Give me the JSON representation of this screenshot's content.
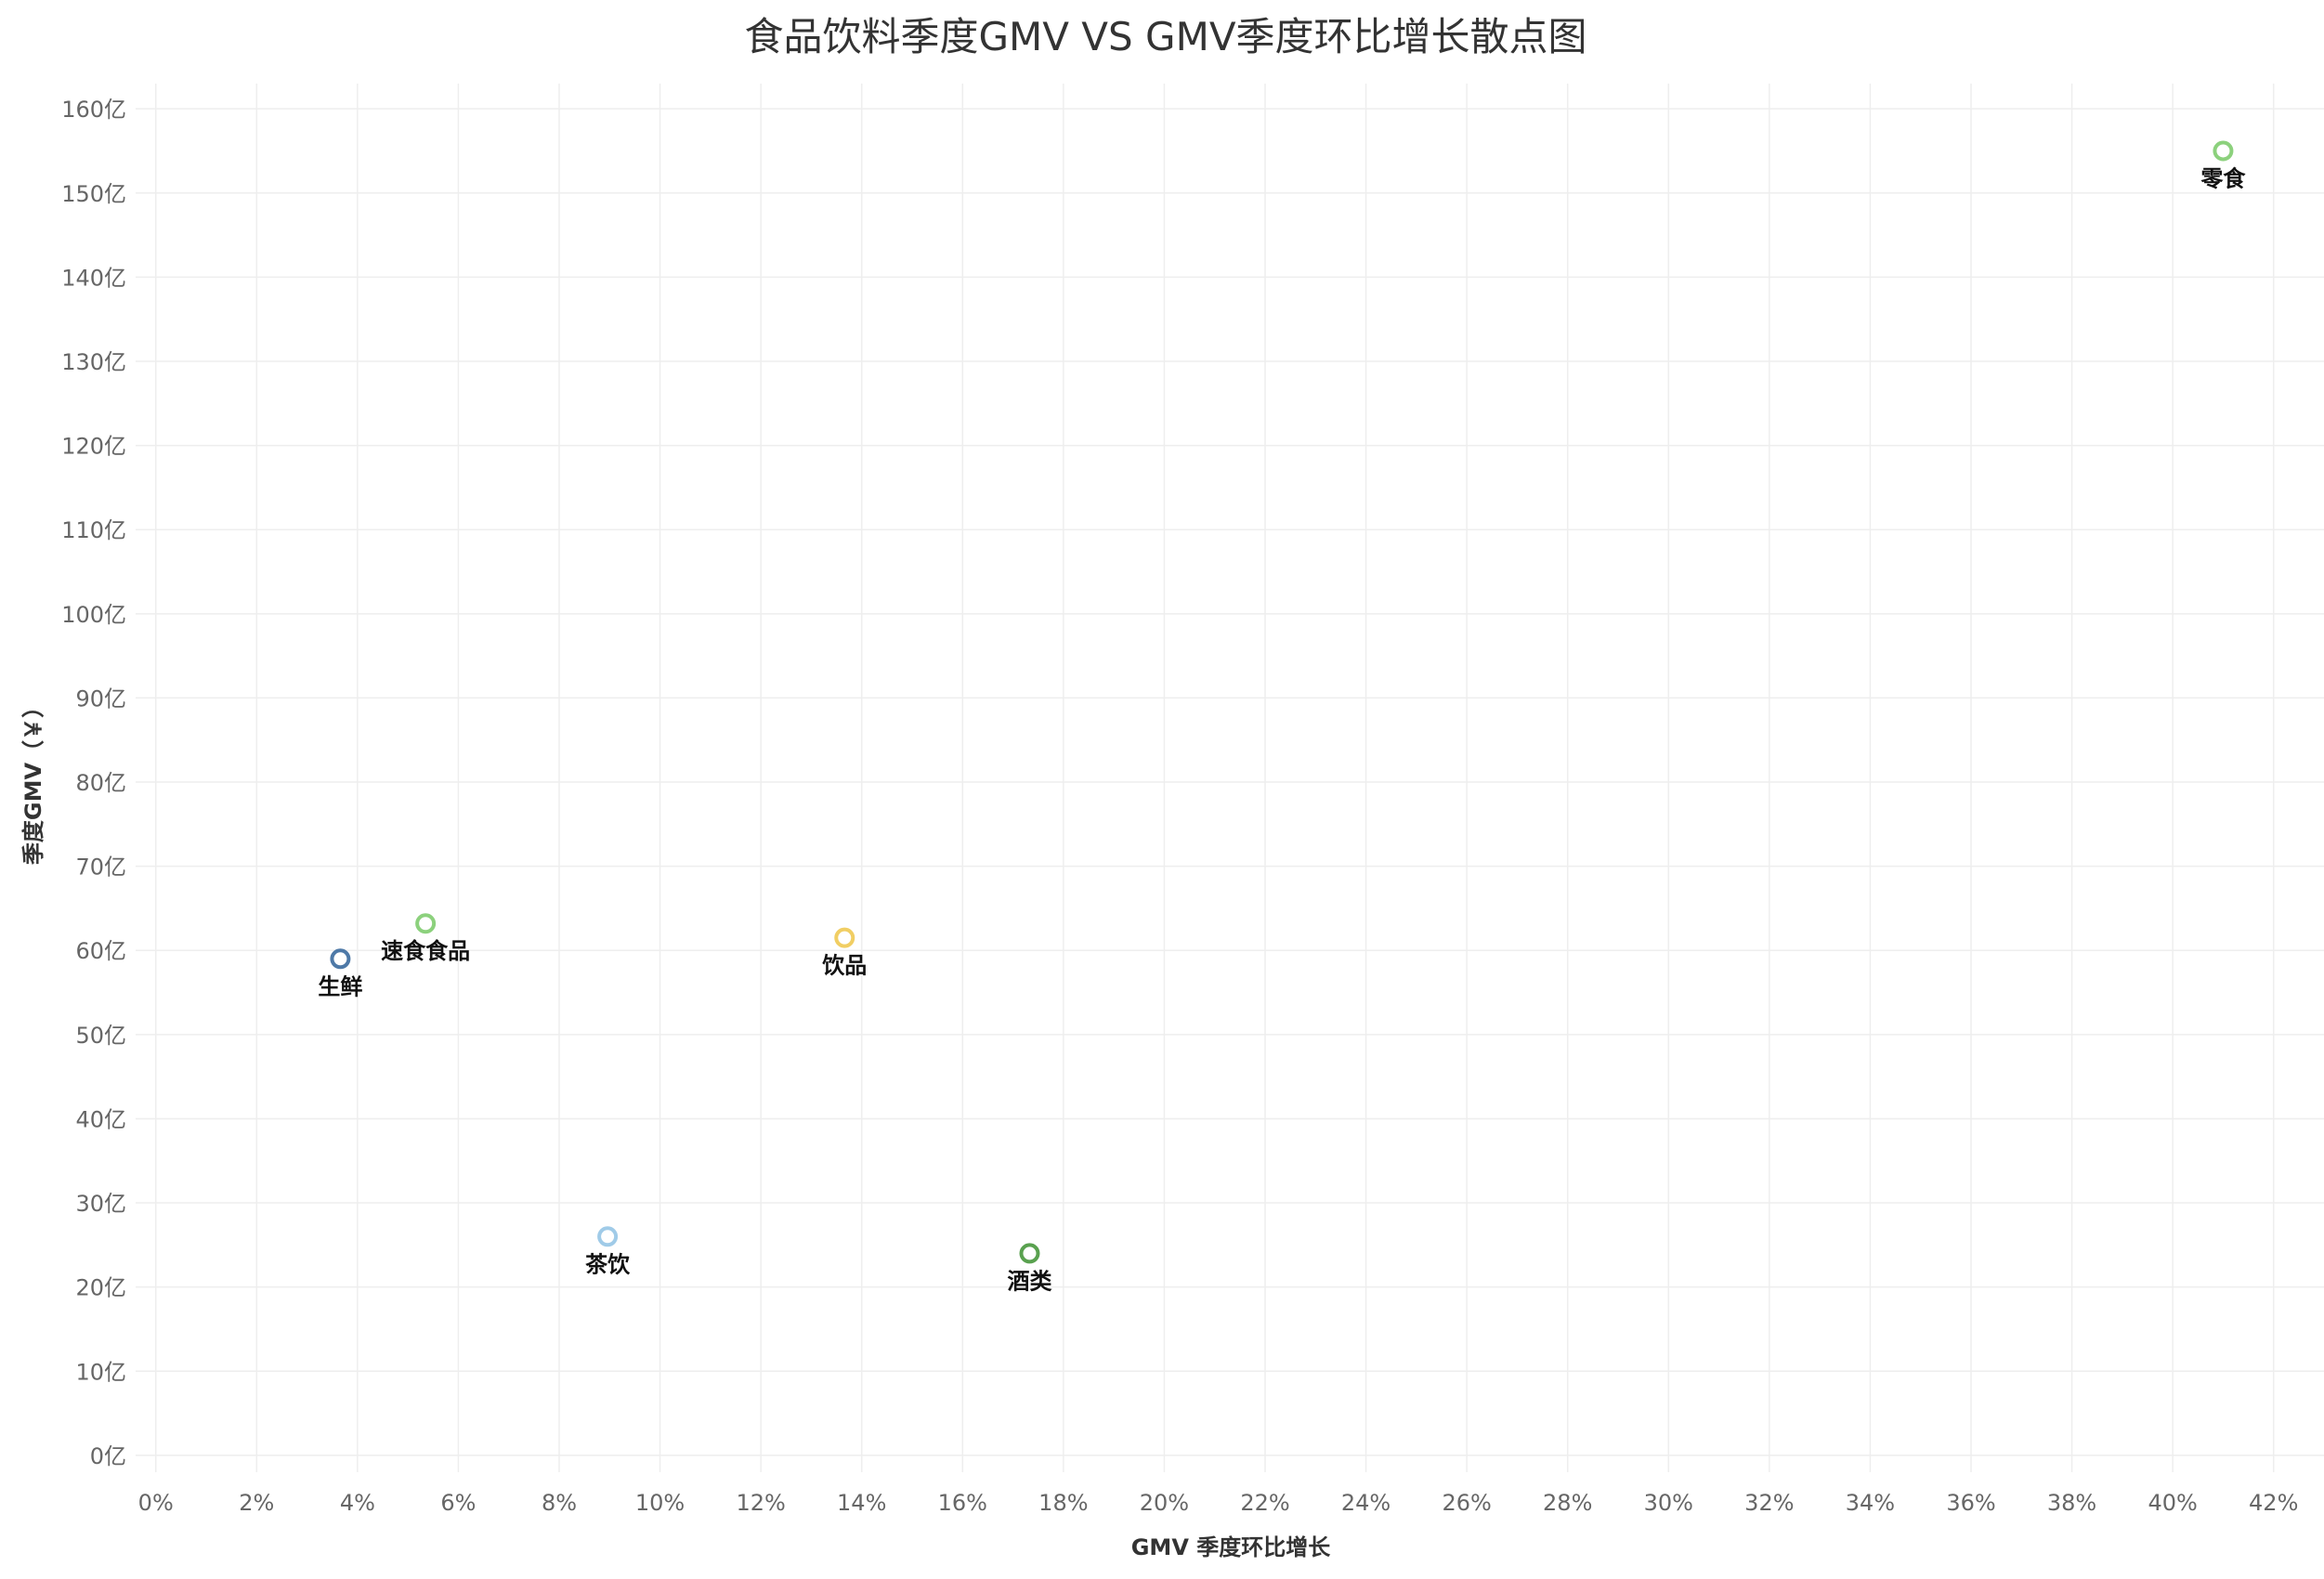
{
  "chart_data": {
    "type": "scatter",
    "title": "食品饮料季度GMV VS GMV季度环比增长散点图",
    "xlabel": "GMV 季度环比增长",
    "ylabel": "季度GMV（￥）",
    "xlim": [
      -0.004,
      0.43
    ],
    "ylim": [
      -2,
      163
    ],
    "x_ticks": [
      0,
      0.02,
      0.04,
      0.06,
      0.08,
      0.1,
      0.12,
      0.14,
      0.16,
      0.18,
      0.2,
      0.22,
      0.24,
      0.26,
      0.28,
      0.3,
      0.32,
      0.34,
      0.36,
      0.38,
      0.4,
      0.42
    ],
    "x_tick_labels": [
      "0%",
      "2%",
      "4%",
      "6%",
      "8%",
      "10%",
      "12%",
      "14%",
      "16%",
      "18%",
      "20%",
      "22%",
      "24%",
      "26%",
      "28%",
      "30%",
      "32%",
      "34%",
      "36%",
      "38%",
      "40%",
      "42%"
    ],
    "y_ticks": [
      0,
      10,
      20,
      30,
      40,
      50,
      60,
      70,
      80,
      90,
      100,
      110,
      120,
      130,
      140,
      150,
      160
    ],
    "y_tick_labels": [
      "0亿",
      "10亿",
      "20亿",
      "30亿",
      "40亿",
      "50亿",
      "60亿",
      "70亿",
      "80亿",
      "90亿",
      "100亿",
      "110亿",
      "120亿",
      "130亿",
      "140亿",
      "150亿",
      "160亿"
    ],
    "grid": true,
    "legend": "none",
    "points": [
      {
        "label": "生鲜",
        "x": 0.0366,
        "y": 59,
        "color": "#4e79a7"
      },
      {
        "label": "速食食品",
        "x": 0.0535,
        "y": 63.2,
        "color": "#8cd17d"
      },
      {
        "label": "茶饮",
        "x": 0.0896,
        "y": 26,
        "color": "#a0cbe8"
      },
      {
        "label": "饮品",
        "x": 0.1366,
        "y": 61.5,
        "color": "#f1ce63"
      },
      {
        "label": "酒类",
        "x": 0.1733,
        "y": 24,
        "color": "#59a14f"
      },
      {
        "label": "零食",
        "x": 0.41,
        "y": 155,
        "color": "#8cd17d"
      }
    ]
  }
}
